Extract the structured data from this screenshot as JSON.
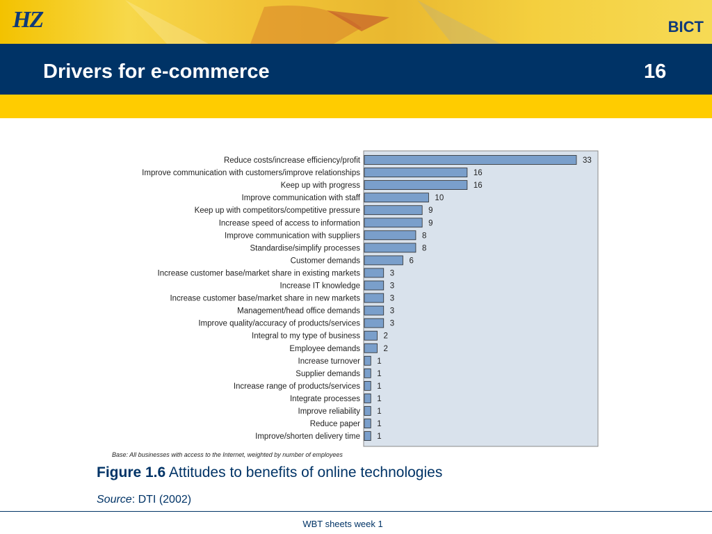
{
  "header": {
    "logo_text": "HZ",
    "brand": "BICT",
    "title": "Drivers for e-commerce",
    "slide_number": "16"
  },
  "chart_data": {
    "type": "bar",
    "orientation": "horizontal",
    "categories": [
      "Reduce costs/increase efficiency/profit",
      "Improve communication with customers/improve relationships",
      "Keep up with progress",
      "Improve communication with staff",
      "Keep up with competitors/competitive pressure",
      "Increase speed of access to information",
      "Improve communication with suppliers",
      "Standardise/simplify processes",
      "Customer demands",
      "Increase customer base/market share in existing markets",
      "Increase IT knowledge",
      "Increase customer base/market share in new markets",
      "Management/head office demands",
      "Improve quality/accuracy of products/services",
      "Integral to my type of business",
      "Employee demands",
      "Increase turnover",
      "Supplier demands",
      "Increase range of products/services",
      "Integrate processes",
      "Improve reliability",
      "Reduce paper",
      "Improve/shorten delivery time"
    ],
    "values": [
      33,
      16,
      16,
      10,
      9,
      9,
      8,
      8,
      6,
      3,
      3,
      3,
      3,
      3,
      2,
      2,
      1,
      1,
      1,
      1,
      1,
      1,
      1
    ],
    "xlim": [
      0,
      33
    ],
    "base_note": "Base: All businesses with access to the Internet, weighted by number of employees",
    "bar_color": "#7a9fcb",
    "plot_background": "#d9e2ec"
  },
  "caption": {
    "label": "Figure 1.6",
    "text": "Attitudes to benefits of online technologies"
  },
  "source": {
    "label": "Source",
    "text": ": DTI (2002)"
  },
  "footer": {
    "text": "WBT sheets week 1"
  }
}
